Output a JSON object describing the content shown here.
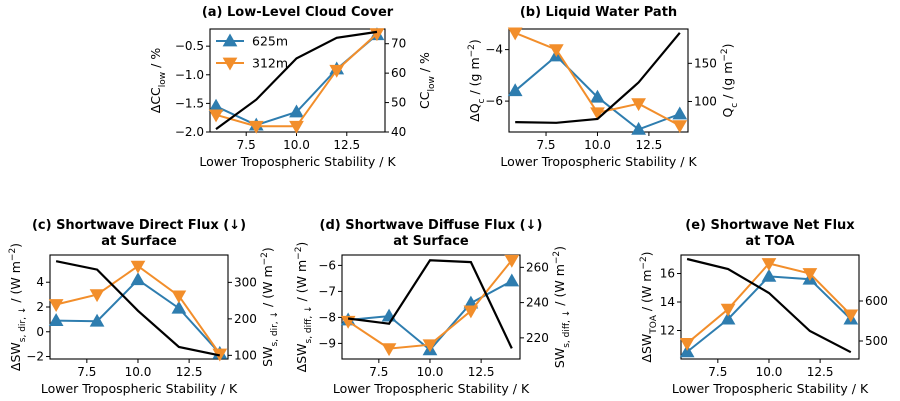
{
  "colors": {
    "s625": "#2E7DAF",
    "s312": "#F28E2B",
    "black": "#000000"
  },
  "legend": {
    "s625": "625m",
    "s312": "312m"
  },
  "chart_data": [
    {
      "id": "a",
      "type": "line",
      "title": [
        "(a) Low-Level Cloud Cover"
      ],
      "xlabel": "Lower Tropospheric Stability / K",
      "ylabel_left": [
        "ΔCC",
        "low",
        " / %"
      ],
      "ylabel_right": [
        "CC",
        "low",
        " / %"
      ],
      "x": [
        6,
        8,
        10,
        12,
        14
      ],
      "xlim": [
        5.7,
        14.4
      ],
      "xticks": [
        7.5,
        10.0,
        12.5
      ],
      "xticklabels": [
        "7.5",
        "10.0",
        "12.5"
      ],
      "ylim_left": [
        -2.0,
        -0.2
      ],
      "yticks_left": [
        -2.0,
        -1.5,
        -1.0,
        -0.5
      ],
      "yticklabels_left": [
        "−2.0",
        "−1.5",
        "−1.0",
        "−0.5"
      ],
      "ylim_right": [
        40,
        75
      ],
      "yticks_right": [
        40,
        50,
        60,
        70
      ],
      "yticklabels_right": [
        "40",
        "50",
        "60",
        "70"
      ],
      "series": [
        {
          "name": "625m",
          "axis": "left",
          "color": "s625",
          "marker": "up",
          "values": [
            -1.55,
            -1.88,
            -1.65,
            -0.9,
            -0.3
          ]
        },
        {
          "name": "312m",
          "axis": "left",
          "color": "s312",
          "marker": "down",
          "values": [
            -1.7,
            -1.9,
            -1.9,
            -0.92,
            -0.28
          ]
        },
        {
          "axis": "right",
          "color": "black",
          "values": [
            41,
            51,
            65,
            72,
            74
          ]
        }
      ],
      "legend": true
    },
    {
      "id": "b",
      "type": "line",
      "title": [
        "(b) Liquid Water Path"
      ],
      "xlabel": "Lower Tropospheric Stability / K",
      "ylabel_left": [
        "ΔQ",
        "c",
        " / (g m",
        "−2",
        ")"
      ],
      "ylabel_right": [
        "Q",
        "c",
        " / (g m",
        "−2",
        ")"
      ],
      "x": [
        6,
        8,
        10,
        12,
        14
      ],
      "xlim": [
        5.7,
        14.4
      ],
      "xticks": [
        7.5,
        10.0,
        12.5
      ],
      "xticklabels": [
        "7.5",
        "10.0",
        "12.5"
      ],
      "ylim_left": [
        -7.2,
        -3.2
      ],
      "yticks_left": [
        -6,
        -4
      ],
      "yticklabels_left": [
        "−6",
        "−4"
      ],
      "ylim_right": [
        60,
        195
      ],
      "yticks_right": [
        100,
        150
      ],
      "yticklabels_right": [
        "100",
        "150"
      ],
      "series": [
        {
          "name": "625m",
          "axis": "left",
          "color": "s625",
          "marker": "up",
          "values": [
            -5.6,
            -4.25,
            -5.85,
            -7.1,
            -6.5
          ]
        },
        {
          "name": "312m",
          "axis": "left",
          "color": "s312",
          "marker": "down",
          "values": [
            -3.35,
            -4.0,
            -6.45,
            -6.1,
            -6.95
          ]
        },
        {
          "axis": "right",
          "color": "black",
          "values": [
            73,
            72,
            77,
            125,
            190
          ]
        }
      ]
    },
    {
      "id": "c",
      "type": "line",
      "title": [
        "(c) Shortwave Direct Flux (↓)",
        "at Surface"
      ],
      "xlabel": "Lower Tropospheric Stability / K",
      "ylabel_left": [
        "ΔSW",
        "s, dir, ↓",
        " / (W m",
        "−2",
        ")"
      ],
      "ylabel_right": [
        "SW",
        "s, dir, ↓",
        " / (W m",
        "−2",
        ")"
      ],
      "x": [
        6,
        8,
        10,
        12,
        14
      ],
      "xlim": [
        5.7,
        14.4
      ],
      "xticks": [
        7.5,
        10.0,
        12.5
      ],
      "xticklabels": [
        "7.5",
        "10.0",
        "12.5"
      ],
      "ylim_left": [
        -2.2,
        6.2
      ],
      "yticks_left": [
        -2,
        0,
        2,
        4
      ],
      "yticklabels_left": [
        "−2",
        "0",
        "2",
        "4"
      ],
      "ylim_right": [
        90,
        375
      ],
      "yticks_right": [
        100,
        200,
        300
      ],
      "yticklabels_right": [
        "100",
        "200",
        "300"
      ],
      "series": [
        {
          "name": "625m",
          "axis": "left",
          "color": "s625",
          "marker": "up",
          "values": [
            0.9,
            0.85,
            4.2,
            1.9,
            -1.75
          ]
        },
        {
          "name": "312m",
          "axis": "left",
          "color": "s312",
          "marker": "down",
          "values": [
            2.2,
            3.0,
            5.3,
            2.9,
            -1.8
          ]
        },
        {
          "axis": "right",
          "color": "black",
          "values": [
            358,
            335,
            222,
            123,
            100
          ]
        }
      ]
    },
    {
      "id": "d",
      "type": "line",
      "title": [
        "(d) Shortwave Diffuse Flux (↓)",
        "at Surface"
      ],
      "xlabel": "Lower Tropospheric Stability / K",
      "ylabel_left": [
        "ΔSW",
        "s, diff, ↓",
        " / (W m",
        "−2",
        ")"
      ],
      "ylabel_right": [
        "SW",
        "s, diff, ↓",
        " / (W m",
        "−2",
        ")"
      ],
      "x": [
        6,
        8,
        10,
        12,
        14
      ],
      "xlim": [
        5.7,
        14.4
      ],
      "xticks": [
        7.5,
        10.0,
        12.5
      ],
      "xticklabels": [
        "7.5",
        "10.0",
        "12.5"
      ],
      "ylim_left": [
        -9.6,
        -5.6
      ],
      "yticks_left": [
        -9,
        -8,
        -7,
        -6
      ],
      "yticklabels_left": [
        "−9",
        "−8",
        "−7",
        "−6"
      ],
      "ylim_right": [
        208,
        267
      ],
      "yticks_right": [
        220,
        240,
        260
      ],
      "yticklabels_right": [
        "220",
        "240",
        "260"
      ],
      "series": [
        {
          "name": "625m",
          "axis": "left",
          "color": "s625",
          "marker": "up",
          "values": [
            -8.1,
            -7.95,
            -9.25,
            -7.45,
            -6.6
          ]
        },
        {
          "name": "312m",
          "axis": "left",
          "color": "s312",
          "marker": "down",
          "values": [
            -8.15,
            -9.2,
            -9.05,
            -7.75,
            -5.8
          ]
        },
        {
          "axis": "right",
          "color": "black",
          "values": [
            231,
            228,
            264,
            263,
            214
          ]
        }
      ]
    },
    {
      "id": "e",
      "type": "line",
      "title": [
        "(e) Shortwave Net Flux",
        "at TOA"
      ],
      "xlabel": "Lower Tropospheric Stability / K",
      "ylabel_left": [
        "ΔSW",
        "TOA",
        " / (W m",
        "−2",
        ")"
      ],
      "ylabel_right": [],
      "x": [
        6,
        8,
        10,
        12,
        14
      ],
      "xlim": [
        5.7,
        14.4
      ],
      "xticks": [
        7.5,
        10.0,
        12.5
      ],
      "xticklabels": [
        "7.5",
        "10.0",
        "12.5"
      ],
      "ylim_left": [
        10.0,
        17.3
      ],
      "yticks_left": [
        12,
        14,
        16
      ],
      "yticklabels_left": [
        "12",
        "14",
        "16"
      ],
      "ylim_right": [
        455,
        715
      ],
      "yticks_right": [
        500,
        600
      ],
      "yticklabels_right": [
        "500",
        "600"
      ],
      "series": [
        {
          "name": "625m",
          "axis": "left",
          "color": "s625",
          "marker": "up",
          "values": [
            10.5,
            12.8,
            15.8,
            15.6,
            12.8
          ]
        },
        {
          "name": "312m",
          "axis": "left",
          "color": "s312",
          "marker": "down",
          "values": [
            11.1,
            13.5,
            16.7,
            16.0,
            13.1
          ]
        },
        {
          "axis": "right",
          "color": "black",
          "values": [
            705,
            680,
            620,
            525,
            472
          ]
        }
      ]
    }
  ]
}
